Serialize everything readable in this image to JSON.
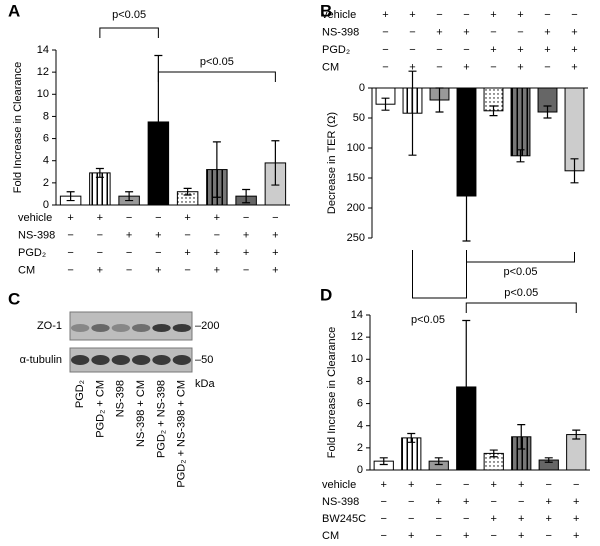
{
  "chart_data": [
    {
      "panel": "A",
      "type": "bar",
      "ylabel": "Fold Increase in Clearance",
      "ylim": [
        0,
        14
      ],
      "yticks": [
        0,
        2,
        4,
        6,
        8,
        10,
        12,
        14
      ],
      "values": [
        0.8,
        2.9,
        0.8,
        7.5,
        1.2,
        3.2,
        0.8,
        3.8
      ],
      "errors": [
        0.4,
        0.4,
        0.4,
        6.0,
        0.3,
        2.5,
        0.6,
        2.0
      ],
      "colors": [
        "#ffffff",
        "#ffffff",
        "#999999",
        "#000000",
        "#ffffff",
        "#777777",
        "#666666",
        "#cccccc"
      ],
      "patterns": [
        "none",
        "stripes",
        "none",
        "none",
        "dots",
        "stripes",
        "none",
        "none"
      ],
      "conditions": [
        {
          "name": "vehicle",
          "values": [
            "+",
            "+",
            "−",
            "−",
            "+",
            "+",
            "−",
            "−"
          ]
        },
        {
          "name": "NS-398",
          "values": [
            "−",
            "−",
            "+",
            "+",
            "−",
            "−",
            "+",
            "+"
          ]
        },
        {
          "name": "PGD₂",
          "values": [
            "−",
            "−",
            "−",
            "−",
            "+",
            "+",
            "+",
            "+"
          ]
        },
        {
          "name": "CM",
          "values": [
            "−",
            "+",
            "−",
            "+",
            "−",
            "+",
            "−",
            "+"
          ]
        }
      ],
      "annotations": [
        "p<0.05",
        "p<0.05"
      ]
    },
    {
      "panel": "B",
      "type": "bar",
      "ylabel": "Decrease in TER (Ω)",
      "y_inverted": true,
      "ylim": [
        0,
        250
      ],
      "yticks": [
        0,
        50,
        100,
        150,
        200,
        250
      ],
      "values": [
        27,
        42,
        20,
        180,
        38,
        113,
        40,
        138
      ],
      "errors": [
        10,
        70,
        20,
        75,
        8,
        10,
        10,
        20
      ],
      "colors": [
        "#ffffff",
        "#ffffff",
        "#999999",
        "#000000",
        "#ffffff",
        "#777777",
        "#666666",
        "#cccccc"
      ],
      "patterns": [
        "none",
        "stripes",
        "none",
        "none",
        "dots",
        "stripes",
        "none",
        "none"
      ],
      "conditions": [
        {
          "name": "vehicle",
          "values": [
            "+",
            "+",
            "−",
            "−",
            "+",
            "+",
            "−",
            "−"
          ]
        },
        {
          "name": "NS-398",
          "values": [
            "−",
            "−",
            "+",
            "+",
            "−",
            "−",
            "+",
            "+"
          ]
        },
        {
          "name": "PGD₂",
          "values": [
            "−",
            "−",
            "−",
            "−",
            "+",
            "+",
            "+",
            "+"
          ]
        },
        {
          "name": "CM",
          "values": [
            "−",
            "+",
            "−",
            "+",
            "−",
            "+",
            "−",
            "+"
          ]
        }
      ],
      "annotations": [
        "p<0.05",
        "p<0.05"
      ]
    },
    {
      "panel": "C",
      "type": "blot",
      "rows": [
        "ZO-1",
        "α-tubulin"
      ],
      "markers": [
        "–200",
        "–50"
      ],
      "unit": "kDa",
      "lanes": [
        "PGD₂",
        "PGD₂ + CM",
        "NS-398",
        "NS-398 + CM",
        "PGD₂ + NS-398",
        "PGD₂ + NS-398 + CM"
      ]
    },
    {
      "panel": "D",
      "type": "bar",
      "ylabel": "Fold Increase in Clearance",
      "ylim": [
        0,
        14
      ],
      "yticks": [
        0,
        2,
        4,
        6,
        8,
        10,
        12,
        14
      ],
      "values": [
        0.8,
        2.9,
        0.8,
        7.5,
        1.5,
        3.0,
        0.9,
        3.2
      ],
      "errors": [
        0.3,
        0.4,
        0.3,
        6.0,
        0.3,
        1.1,
        0.2,
        0.4
      ],
      "colors": [
        "#ffffff",
        "#ffffff",
        "#999999",
        "#000000",
        "#ffffff",
        "#777777",
        "#666666",
        "#cccccc"
      ],
      "patterns": [
        "none",
        "stripes",
        "none",
        "none",
        "dots",
        "stripes",
        "none",
        "none"
      ],
      "conditions": [
        {
          "name": "vehicle",
          "values": [
            "+",
            "+",
            "−",
            "−",
            "+",
            "+",
            "−",
            "−"
          ]
        },
        {
          "name": "NS-398",
          "values": [
            "−",
            "−",
            "+",
            "+",
            "−",
            "−",
            "+",
            "+"
          ]
        },
        {
          "name": "BW245C",
          "values": [
            "−",
            "−",
            "−",
            "−",
            "+",
            "+",
            "+",
            "+"
          ]
        },
        {
          "name": "CM",
          "values": [
            "−",
            "+",
            "−",
            "+",
            "−",
            "+",
            "−",
            "+"
          ]
        }
      ],
      "annotations": [
        "p<0.05"
      ]
    }
  ]
}
